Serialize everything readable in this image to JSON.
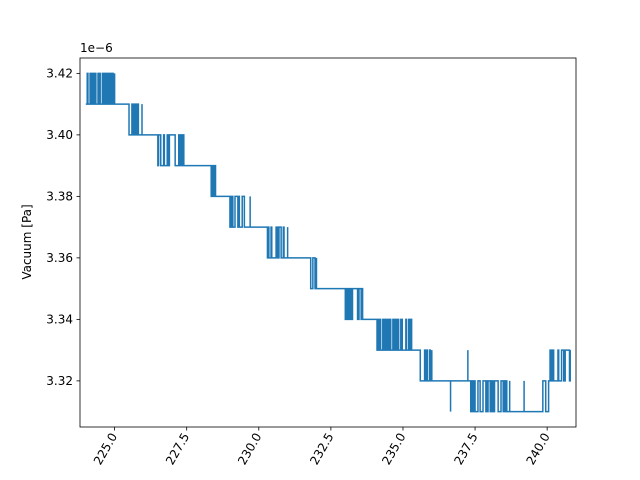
{
  "chart_data": {
    "type": "line",
    "title": "",
    "xlabel": "",
    "ylabel": "Vacuum [Pa]",
    "y_offset_text": "1e−6",
    "xlim": [
      223.8,
      241.0
    ],
    "ylim": [
      3.305,
      3.425
    ],
    "x_ticks": [
      225.0,
      227.5,
      230.0,
      232.5,
      235.0,
      237.5,
      240.0
    ],
    "x_tick_labels": [
      "225.0",
      "227.5",
      "230.0",
      "232.5",
      "235.0",
      "237.5",
      "240.0"
    ],
    "y_ticks": [
      3.32,
      3.34,
      3.36,
      3.38,
      3.4,
      3.42
    ],
    "y_tick_labels": [
      "3.32",
      "3.34",
      "3.36",
      "3.38",
      "3.40",
      "3.42"
    ],
    "x_tick_rotation": "60 degrees",
    "grid": false,
    "legend": "none",
    "series": [
      {
        "color": "#1f77b4",
        "segments": [
          {
            "x_start": 224.0,
            "x_end": 225.0,
            "levels": [
              3.41,
              3.42
            ]
          },
          {
            "x_start": 225.0,
            "x_end": 225.5,
            "levels": [
              3.41
            ]
          },
          {
            "x_start": 225.5,
            "x_end": 225.95,
            "levels": [
              3.4,
              3.41
            ]
          },
          {
            "x_start": 225.95,
            "x_end": 226.5,
            "levels": [
              3.4
            ]
          },
          {
            "x_start": 226.5,
            "x_end": 227.4,
            "levels": [
              3.39,
              3.4
            ]
          },
          {
            "x_start": 227.4,
            "x_end": 228.35,
            "levels": [
              3.39
            ]
          },
          {
            "x_start": 228.35,
            "x_end": 228.5,
            "levels": [
              3.38,
              3.39
            ]
          },
          {
            "x_start": 228.5,
            "x_end": 229.0,
            "levels": [
              3.38
            ]
          },
          {
            "x_start": 229.0,
            "x_end": 229.7,
            "levels": [
              3.37,
              3.38
            ]
          },
          {
            "x_start": 229.7,
            "x_end": 230.3,
            "levels": [
              3.37
            ]
          },
          {
            "x_start": 230.3,
            "x_end": 231.0,
            "levels": [
              3.36,
              3.37
            ]
          },
          {
            "x_start": 231.0,
            "x_end": 231.8,
            "levels": [
              3.36
            ]
          },
          {
            "x_start": 231.8,
            "x_end": 232.0,
            "levels": [
              3.35,
              3.36
            ]
          },
          {
            "x_start": 232.0,
            "x_end": 233.0,
            "levels": [
              3.35
            ]
          },
          {
            "x_start": 233.0,
            "x_end": 233.6,
            "levels": [
              3.34,
              3.35
            ]
          },
          {
            "x_start": 233.6,
            "x_end": 234.1,
            "levels": [
              3.34
            ]
          },
          {
            "x_start": 234.1,
            "x_end": 235.3,
            "levels": [
              3.33,
              3.34
            ]
          },
          {
            "x_start": 235.3,
            "x_end": 235.6,
            "levels": [
              3.33
            ]
          },
          {
            "x_start": 235.6,
            "x_end": 236.0,
            "levels": [
              3.32,
              3.33
            ]
          },
          {
            "x_start": 236.0,
            "x_end": 237.0,
            "levels": [
              3.32
            ]
          },
          {
            "x_start": 237.0,
            "x_end": 237.35,
            "levels": [
              3.32
            ]
          },
          {
            "x_start": 237.35,
            "x_end": 238.7,
            "levels": [
              3.31,
              3.32
            ]
          },
          {
            "x_start": 238.7,
            "x_end": 239.8,
            "levels": [
              3.31
            ]
          },
          {
            "x_start": 239.8,
            "x_end": 240.05,
            "levels": [
              3.31,
              3.32
            ]
          },
          {
            "x_start": 240.05,
            "x_end": 240.8,
            "levels": [
              3.32,
              3.33
            ]
          }
        ],
        "spikes": [
          {
            "x": 236.65,
            "from": 3.32,
            "to": 3.31
          },
          {
            "x": 237.25,
            "from": 3.32,
            "to": 3.33
          },
          {
            "x": 239.2,
            "from": 3.31,
            "to": 3.32
          }
        ]
      }
    ]
  }
}
